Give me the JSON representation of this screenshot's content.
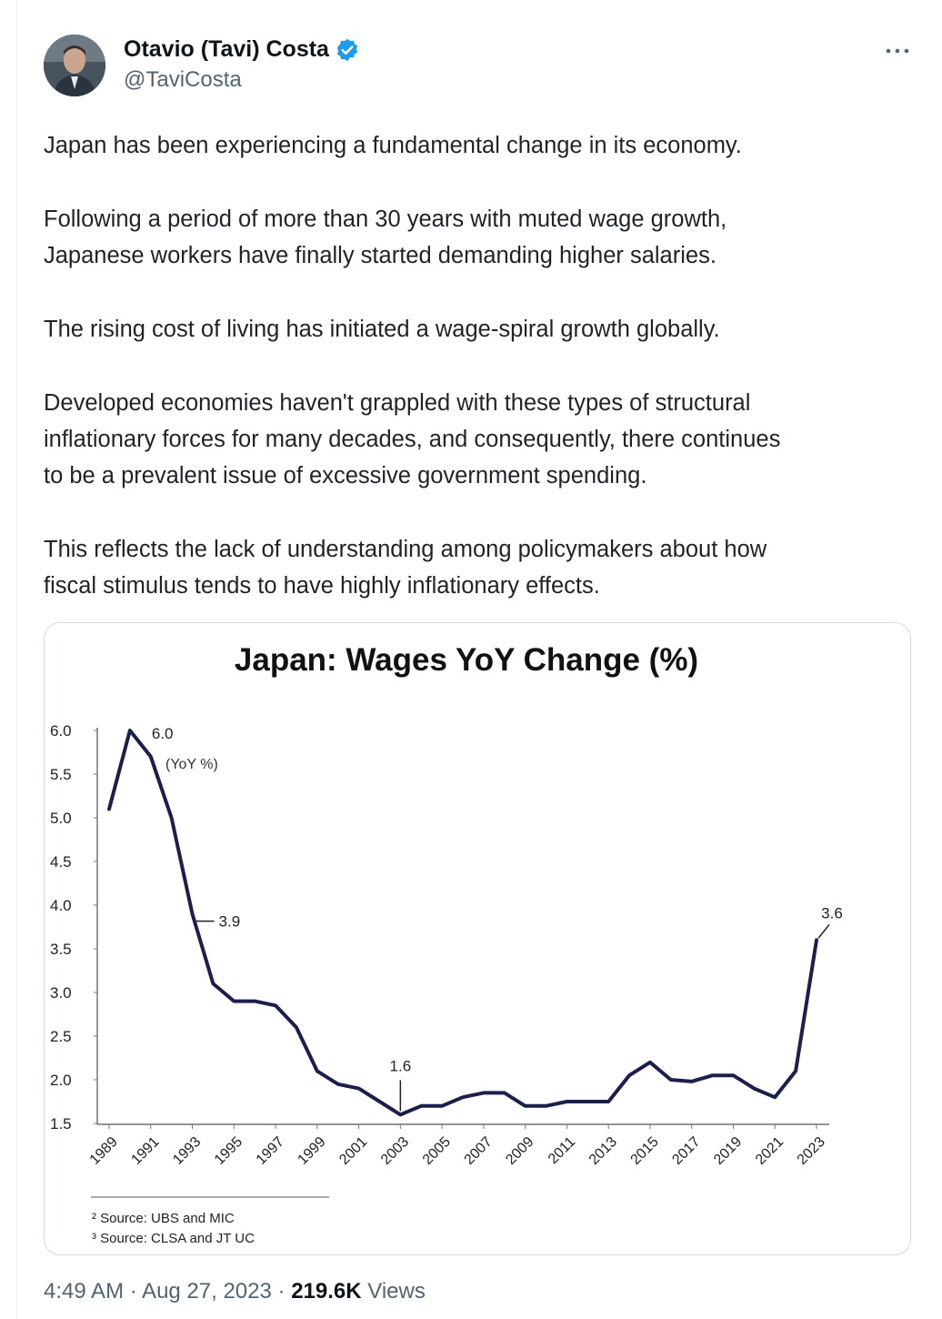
{
  "author": {
    "name": "Otavio (Tavi) Costa",
    "handle": "@TaviCosta"
  },
  "tweet": {
    "paragraphs": [
      [
        "Japan has been experiencing a fundamental change in its economy."
      ],
      [
        "Following a period of more than 30 years with muted wage growth,",
        "Japanese workers have finally started demanding higher salaries."
      ],
      [
        "The rising cost of living has initiated a wage-spiral growth globally."
      ],
      [
        "Developed economies haven't grappled with these types of structural",
        "inflationary forces for many decades, and consequently, there continues",
        "to be a prevalent issue of excessive government spending."
      ],
      [
        "This reflects the lack of understanding among policymakers about how",
        "fiscal stimulus tends to have highly inflationary effects."
      ]
    ]
  },
  "chart_data": {
    "type": "line",
    "title": "Japan: Wages YoY Change (%)",
    "series_label": "(YoY %)",
    "y_ticks": [
      "6.0",
      "5.5",
      "5.0",
      "4.5",
      "4.0",
      "3.5",
      "3.0",
      "2.5",
      "2.0",
      "1.5"
    ],
    "ylim": [
      1.5,
      6.0
    ],
    "x_ticks": [
      "1989",
      "1991",
      "1993",
      "1995",
      "1997",
      "1999",
      "2001",
      "2003",
      "2005",
      "2007",
      "2009",
      "2011",
      "2013",
      "2015",
      "2017",
      "2019",
      "2021",
      "2023"
    ],
    "x": [
      1989,
      1990,
      1991,
      1992,
      1993,
      1994,
      1995,
      1996,
      1997,
      1998,
      1999,
      2000,
      2001,
      2002,
      2003,
      2004,
      2005,
      2006,
      2007,
      2008,
      2009,
      2010,
      2011,
      2012,
      2013,
      2014,
      2015,
      2016,
      2017,
      2018,
      2019,
      2020,
      2021,
      2022,
      2023
    ],
    "values": [
      5.1,
      6.0,
      5.7,
      5.0,
      3.9,
      3.1,
      2.9,
      2.9,
      2.85,
      2.6,
      2.1,
      1.95,
      1.9,
      1.75,
      1.6,
      1.7,
      1.7,
      1.8,
      1.85,
      1.85,
      1.7,
      1.7,
      1.75,
      1.75,
      1.75,
      2.05,
      2.2,
      2.0,
      1.98,
      2.05,
      2.05,
      1.9,
      1.8,
      2.1,
      3.6
    ],
    "annotations": [
      {
        "x": 1990,
        "y": 6.0,
        "label": "6.0"
      },
      {
        "x": 1993,
        "y": 3.9,
        "label": "3.9"
      },
      {
        "x": 2003,
        "y": 1.6,
        "label": "1.6"
      },
      {
        "x": 2023,
        "y": 3.6,
        "label": "3.6"
      }
    ],
    "sources": [
      "² Source: UBS and MIC",
      "³ Source: CLSA and JT UC"
    ],
    "line_color": "#1b1f4b"
  },
  "footer": {
    "time": "4:49 AM · Aug 27, 2023 · ",
    "views_count": "219.6K",
    "views_label": " Views"
  }
}
